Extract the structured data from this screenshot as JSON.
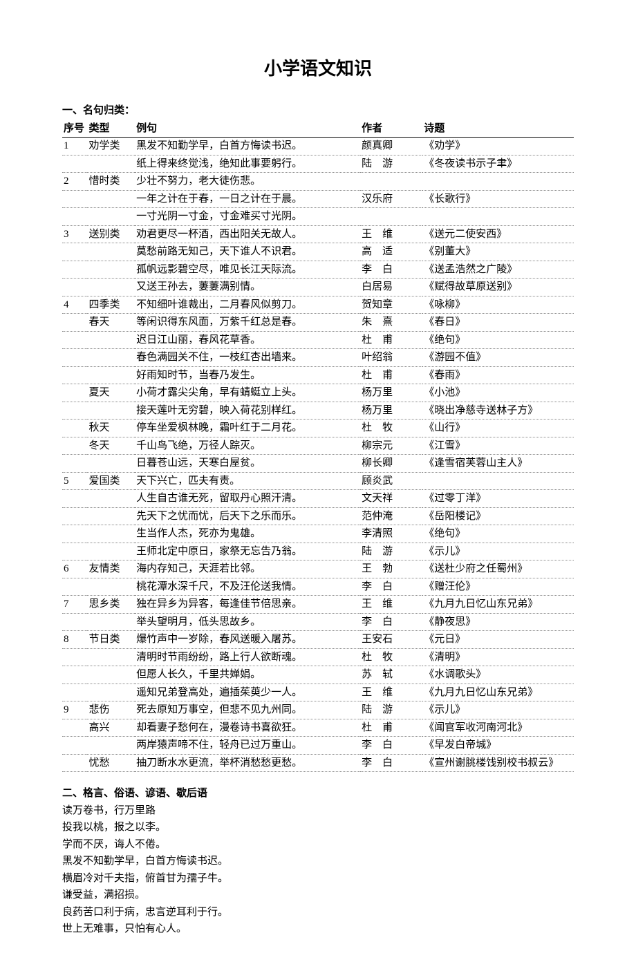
{
  "doc_title": "小学语文知识",
  "section1_title": "一、名句归类：",
  "headers": {
    "num": "序号",
    "type": "类型",
    "sentence": "例句",
    "author": "作者",
    "title": "诗题"
  },
  "rows": [
    {
      "n": "1",
      "t": "劝学类",
      "s": "黑发不知勤学早，白首方悔读书迟。",
      "a": "颜真卿",
      "ti": "《劝学》"
    },
    {
      "n": "",
      "t": "",
      "s": "纸上得来终觉浅，绝知此事要躬行。",
      "a": "陆　游",
      "ti": "《冬夜读书示子聿》"
    },
    {
      "n": "2",
      "t": "惜时类",
      "s": "少壮不努力，老大徒伤悲。",
      "a": "",
      "ti": ""
    },
    {
      "n": "",
      "t": "",
      "s": "一年之计在于春，一日之计在于晨。",
      "a": "汉乐府",
      "ti": "《长歌行》"
    },
    {
      "n": "",
      "t": "",
      "s": "一寸光阴一寸金，寸金难买寸光阴。",
      "a": "",
      "ti": ""
    },
    {
      "n": "3",
      "t": "送别类",
      "s": "劝君更尽一杯酒，西出阳关无故人。",
      "a": "王　维",
      "ti": "《送元二使安西》"
    },
    {
      "n": "",
      "t": "",
      "s": "莫愁前路无知己，天下谁人不识君。",
      "a": "高　适",
      "ti": "《别董大》"
    },
    {
      "n": "",
      "t": "",
      "s": "孤帆远影碧空尽，唯见长江天际流。",
      "a": "李　白",
      "ti": "《送孟浩然之广陵》"
    },
    {
      "n": "",
      "t": "",
      "s": "又送王孙去，萋萋满别情。",
      "a": "白居易",
      "ti": "《赋得故草原送别》"
    },
    {
      "n": "4",
      "t": "四季类",
      "s": "不知细叶谁裁出，二月春风似剪刀。",
      "a": "贺知章",
      "ti": "《咏柳》"
    },
    {
      "n": "",
      "t": "春天",
      "s": "等闲识得东风面，万紫千红总是春。",
      "a": "朱　熹",
      "ti": "《春日》"
    },
    {
      "n": "",
      "t": "",
      "s": "迟日江山丽，春风花草香。",
      "a": "杜　甫",
      "ti": "《绝句》"
    },
    {
      "n": "",
      "t": "",
      "s": "春色满园关不住，一枝红杏出墙来。",
      "a": "叶绍翁",
      "ti": "《游园不值》"
    },
    {
      "n": "",
      "t": "",
      "s": "好雨知时节，当春乃发生。",
      "a": "杜　甫",
      "ti": "《春雨》"
    },
    {
      "n": "",
      "t": "夏天",
      "s": "小荷才露尖尖角，早有蜻蜓立上头。",
      "a": "杨万里",
      "ti": "《小池》"
    },
    {
      "n": "",
      "t": "",
      "s": "接天莲叶无穷碧，映入荷花别样红。",
      "a": "杨万里",
      "ti": "《晓出净慈寺送林子方》"
    },
    {
      "n": "",
      "t": "秋天",
      "s": "停车坐爱枫林晚，霜叶红于二月花。",
      "a": "杜　牧",
      "ti": "《山行》"
    },
    {
      "n": "",
      "t": "冬天",
      "s": "千山鸟飞绝，万径人踪灭。",
      "a": "柳宗元",
      "ti": "《江雪》"
    },
    {
      "n": "",
      "t": "",
      "s": "日暮苍山远，天寒白屋贫。",
      "a": "柳长卿",
      "ti": "《逢雪宿芙蓉山主人》"
    },
    {
      "n": "5",
      "t": "爱国类",
      "s": "天下兴亡，匹夫有责。",
      "a": "顾炎武",
      "ti": ""
    },
    {
      "n": "",
      "t": "",
      "s": "人生自古谁无死，留取丹心照汗清。",
      "a": "文天祥",
      "ti": "《过零丁洋》"
    },
    {
      "n": "",
      "t": "",
      "s": "先天下之忧而忧，后天下之乐而乐。",
      "a": "范仲淹",
      "ti": "《岳阳楼记》"
    },
    {
      "n": "",
      "t": "",
      "s": "生当作人杰，死亦为鬼雄。",
      "a": "李清照",
      "ti": "《绝句》"
    },
    {
      "n": "",
      "t": "",
      "s": "王师北定中原日，家祭无忘告乃翁。",
      "a": "陆　游",
      "ti": "《示儿》"
    },
    {
      "n": "6",
      "t": "友情类",
      "s": "海内存知己，天涯若比邻。",
      "a": "王　勃",
      "ti": "《送杜少府之任蜀州》"
    },
    {
      "n": "",
      "t": "",
      "s": "桃花潭水深千尺，不及汪伦送我情。",
      "a": "李　白",
      "ti": "《赠汪伦》"
    },
    {
      "n": "7",
      "t": "思乡类",
      "s": "独在异乡为异客，每逢佳节倍思亲。",
      "a": "王　维",
      "ti": "《九月九日忆山东兄弟》"
    },
    {
      "n": "",
      "t": "",
      "s": "举头望明月，低头思故乡。",
      "a": "李　白",
      "ti": "《静夜思》"
    },
    {
      "n": "8",
      "t": "节日类",
      "s": "爆竹声中一岁除，春风送暖入屠苏。",
      "a": "王安石",
      "ti": "《元日》"
    },
    {
      "n": "",
      "t": "",
      "s": "清明时节雨纷纷，路上行人欲断魂。",
      "a": "杜　牧",
      "ti": "《清明》"
    },
    {
      "n": "",
      "t": "",
      "s": "但愿人长久，千里共婵娟。",
      "a": "苏　轼",
      "ti": "《水调歌头》"
    },
    {
      "n": "",
      "t": "",
      "s": "遥知兄弟登高处，遍插茱萸少一人。",
      "a": "王　维",
      "ti": "《九月九日忆山东兄弟》"
    },
    {
      "n": "9",
      "t": "悲伤",
      "s": "死去原知万事空，但悲不见九州同。",
      "a": "陆　游",
      "ti": "《示儿》"
    },
    {
      "n": "",
      "t": "高兴",
      "s": "却看妻子愁何在，漫卷诗书喜欲狂。",
      "a": "杜　甫",
      "ti": "《闻官军收河南河北》"
    },
    {
      "n": "",
      "t": "",
      "s": "两岸猿声啼不住，轻舟已过万重山。",
      "a": "李　白",
      "ti": "《早发白帝城》"
    },
    {
      "n": "",
      "t": "忧愁",
      "s": "抽刀断水水更流，举杯消愁愁更愁。",
      "a": "李　白",
      "ti": "《宣州谢朓楼饯别校书叔云》"
    }
  ],
  "section2_title": "二、格言、俗语、谚语、歇后语",
  "sayings": [
    "读万卷书，行万里路",
    "投我以桃，报之以李。",
    "学而不厌，诲人不倦。",
    "黑发不知勤学早，白首方悔读书迟。",
    "横眉冷对千夫指，俯首甘为孺子牛。",
    "谦受益，满招损。",
    "良药苦口利于病，忠言逆耳利于行。",
    "世上无难事，只怕有心人。"
  ]
}
